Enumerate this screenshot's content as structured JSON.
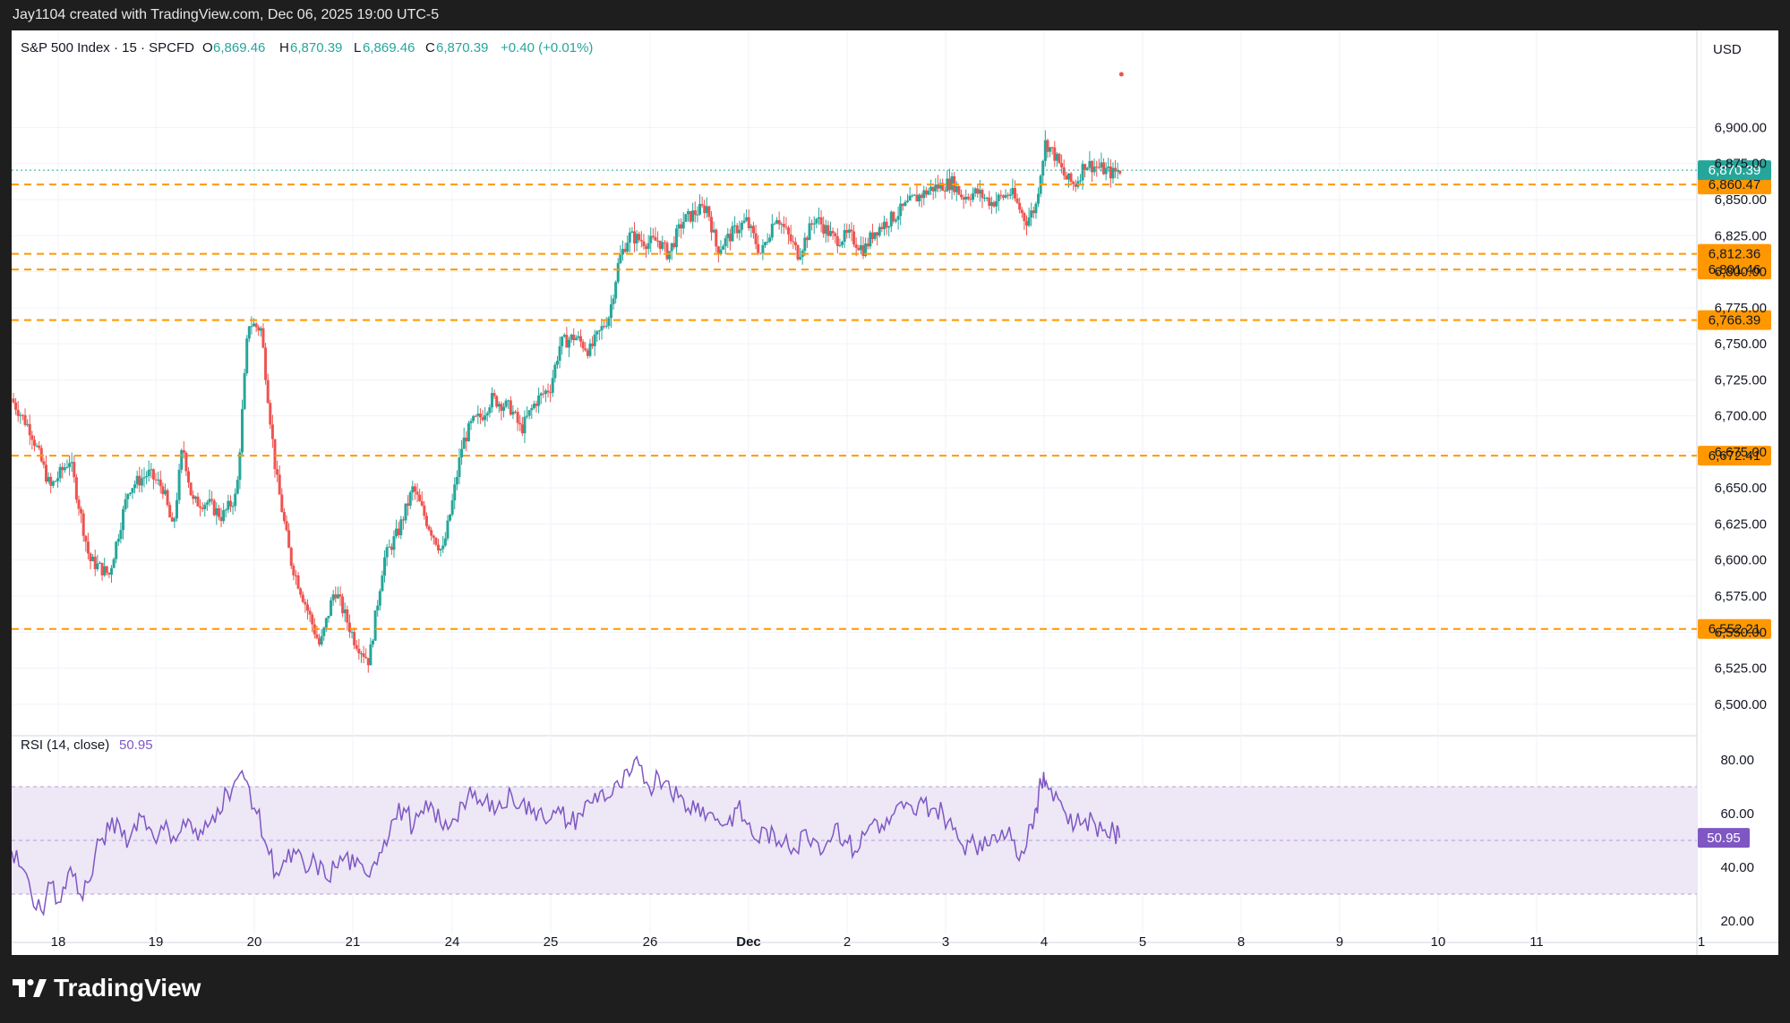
{
  "topbar": {
    "text": "Jay1104 created with TradingView.com, Dec 06, 2025 19:00 UTC-5"
  },
  "branding": {
    "logo_text": "TradingView",
    "icon": "tradingview-logo-icon"
  },
  "header": {
    "symbol": "S&P 500 Index · 15 · SPCFD",
    "o_label": "O",
    "o": "6,869.46",
    "h_label": "H",
    "h": "6,870.39",
    "l_label": "L",
    "l": "6,869.46",
    "c_label": "C",
    "c": "6,870.39",
    "change": "+0.40 (+0.01%)",
    "currency": "USD"
  },
  "colors": {
    "up": "#26a69a",
    "down": "#ef5350",
    "level": "#ff9800",
    "rsi": "#7e57c2",
    "rsi_band": "#ede7f6",
    "grid": "#f0f3fa",
    "axis_text": "#131722"
  },
  "chart_data": {
    "type": "candlestick",
    "title": "S&P 500 Index · 15 · SPCFD",
    "y_axis": {
      "min": 6485,
      "max": 6940,
      "ticks": [
        "6,900.00",
        "6,875.00",
        "6,850.00",
        "6,825.00",
        "6,800.00",
        "6,775.00",
        "6,750.00",
        "6,725.00",
        "6,700.00",
        "6,675.00",
        "6,650.00",
        "6,625.00",
        "6,600.00",
        "6,575.00",
        "6,550.00",
        "6,525.00",
        "6,500.00"
      ]
    },
    "x_axis": {
      "labels": [
        "18",
        "19",
        "20",
        "21",
        "24",
        "25",
        "26",
        "Dec",
        "2",
        "3",
        "4",
        "5",
        "8",
        "9",
        "10",
        "11",
        "1"
      ]
    },
    "last_price": {
      "value": 6870.39,
      "label": "6,870.39"
    },
    "levels": [
      {
        "value": 6860.47,
        "label": "6,860.47"
      },
      {
        "value": 6812.36,
        "label": "6,812.36"
      },
      {
        "value": 6801.46,
        "label": "6,801.46"
      },
      {
        "value": 6766.39,
        "label": "6,766.39"
      },
      {
        "value": 6672.41,
        "label": "6,672.41"
      },
      {
        "value": 6552.21,
        "label": "6,552.21"
      }
    ],
    "price_path": [
      [
        0,
        6712
      ],
      [
        2,
        6690
      ],
      [
        4,
        6650
      ],
      [
        6,
        6670
      ],
      [
        8,
        6600
      ],
      [
        10,
        6590
      ],
      [
        12,
        6650
      ],
      [
        14,
        6660
      ],
      [
        15.5,
        6650
      ],
      [
        16.5,
        6620
      ],
      [
        17.5,
        6680
      ],
      [
        18.5,
        6640
      ],
      [
        20,
        6640
      ],
      [
        21.5,
        6630
      ],
      [
        23,
        6645
      ],
      [
        24.2,
        6765
      ],
      [
        25.5,
        6760
      ],
      [
        27,
        6660
      ],
      [
        28.5,
        6600
      ],
      [
        30,
        6570
      ],
      [
        31.5,
        6540
      ],
      [
        33,
        6580
      ],
      [
        35,
        6545
      ],
      [
        36.5,
        6530
      ],
      [
        38,
        6600
      ],
      [
        39.5,
        6620
      ],
      [
        41,
        6650
      ],
      [
        42.5,
        6625
      ],
      [
        44,
        6605
      ],
      [
        45,
        6640
      ],
      [
        46,
        6680
      ],
      [
        47,
        6695
      ],
      [
        48,
        6700
      ],
      [
        49,
        6712
      ],
      [
        51,
        6705
      ],
      [
        52,
        6690
      ],
      [
        53.5,
        6710
      ],
      [
        55,
        6720
      ],
      [
        56,
        6750
      ],
      [
        57.5,
        6755
      ],
      [
        59,
        6745
      ],
      [
        61,
        6770
      ],
      [
        62,
        6808
      ],
      [
        63,
        6825
      ],
      [
        65,
        6820
      ],
      [
        66,
        6822
      ],
      [
        67,
        6812
      ],
      [
        68.5,
        6835
      ],
      [
        70,
        6842
      ],
      [
        71,
        6845
      ],
      [
        72,
        6815
      ],
      [
        74,
        6830
      ],
      [
        75,
        6835
      ],
      [
        76.5,
        6812
      ],
      [
        78,
        6840
      ],
      [
        80.3,
        6812
      ],
      [
        82,
        6838
      ],
      [
        84,
        6822
      ],
      [
        85.5,
        6825
      ],
      [
        87,
        6815
      ],
      [
        88,
        6828
      ],
      [
        90,
        6838
      ],
      [
        92,
        6850
      ],
      [
        94,
        6858
      ],
      [
        96,
        6862
      ],
      [
        97,
        6852
      ],
      [
        98.5,
        6855
      ],
      [
        100,
        6848
      ],
      [
        102,
        6855
      ],
      [
        103.5,
        6835
      ],
      [
        104.5,
        6845
      ],
      [
        105,
        6870
      ],
      [
        105.5,
        6890
      ],
      [
        106.5,
        6880
      ],
      [
        107.5,
        6865
      ],
      [
        108.5,
        6860
      ],
      [
        109.5,
        6875
      ],
      [
        111,
        6872
      ],
      [
        112.3,
        6868
      ],
      [
        113,
        6870.39
      ]
    ],
    "rsi": {
      "label": "RSI (14, close)",
      "value": 50.95,
      "value_label": "50.95",
      "min": 15,
      "max": 85,
      "upper": 70,
      "middle": 50,
      "lower": 30,
      "ticks": [
        "80.00",
        "60.00",
        "40.00",
        "20.00"
      ],
      "path": [
        [
          0,
          46
        ],
        [
          1,
          40
        ],
        [
          2,
          30
        ],
        [
          3,
          24
        ],
        [
          4,
          34
        ],
        [
          5,
          27
        ],
        [
          6,
          40
        ],
        [
          7,
          30
        ],
        [
          8,
          35
        ],
        [
          9,
          50
        ],
        [
          10,
          54
        ],
        [
          11,
          56
        ],
        [
          12,
          50
        ],
        [
          13,
          60
        ],
        [
          14,
          55
        ],
        [
          15,
          52
        ],
        [
          16,
          54
        ],
        [
          17,
          52
        ],
        [
          18,
          58
        ],
        [
          19,
          50
        ],
        [
          20,
          55
        ],
        [
          21,
          62
        ],
        [
          22,
          68
        ],
        [
          23,
          73
        ],
        [
          24,
          72
        ],
        [
          25,
          60
        ],
        [
          26,
          48
        ],
        [
          27,
          38
        ],
        [
          28,
          42
        ],
        [
          29,
          45
        ],
        [
          30,
          38
        ],
        [
          31,
          42
        ],
        [
          32,
          36
        ],
        [
          33,
          40
        ],
        [
          34,
          44
        ],
        [
          35,
          40
        ],
        [
          36,
          38
        ],
        [
          37,
          42
        ],
        [
          38,
          50
        ],
        [
          39,
          58
        ],
        [
          40,
          62
        ],
        [
          41,
          55
        ],
        [
          42,
          60
        ],
        [
          43,
          62
        ],
        [
          44,
          54
        ],
        [
          45,
          58
        ],
        [
          46,
          64
        ],
        [
          47,
          66
        ],
        [
          48,
          63
        ],
        [
          49,
          65
        ],
        [
          50,
          62
        ],
        [
          51,
          67
        ],
        [
          52,
          64
        ],
        [
          53,
          60
        ],
        [
          54,
          62
        ],
        [
          55,
          58
        ],
        [
          56,
          60
        ],
        [
          57,
          56
        ],
        [
          58,
          60
        ],
        [
          59,
          64
        ],
        [
          60,
          68
        ],
        [
          61,
          66
        ],
        [
          62,
          70
        ],
        [
          63,
          74
        ],
        [
          64,
          78
        ],
        [
          65,
          70
        ],
        [
          66,
          74
        ],
        [
          67,
          72
        ],
        [
          68,
          66
        ],
        [
          69,
          62
        ],
        [
          70,
          64
        ],
        [
          71,
          60
        ],
        [
          72,
          58
        ],
        [
          73,
          56
        ],
        [
          74,
          62
        ],
        [
          75,
          56
        ],
        [
          76,
          50
        ],
        [
          77,
          54
        ],
        [
          78,
          48
        ],
        [
          79,
          52
        ],
        [
          80,
          46
        ],
        [
          81,
          54
        ],
        [
          82,
          50
        ],
        [
          83,
          48
        ],
        [
          84,
          56
        ],
        [
          85,
          50
        ],
        [
          86,
          46
        ],
        [
          87,
          52
        ],
        [
          88,
          58
        ],
        [
          89,
          54
        ],
        [
          90,
          60
        ],
        [
          91,
          62
        ],
        [
          92,
          60
        ],
        [
          93,
          64
        ],
        [
          94,
          62
        ],
        [
          95,
          60
        ],
        [
          96,
          54
        ],
        [
          97,
          48
        ],
        [
          98,
          52
        ],
        [
          99,
          46
        ],
        [
          100,
          52
        ],
        [
          101,
          54
        ],
        [
          102,
          50
        ],
        [
          103,
          46
        ],
        [
          104,
          56
        ],
        [
          104.5,
          62
        ],
        [
          105,
          71
        ],
        [
          105.5,
          72
        ],
        [
          106.5,
          68
        ],
        [
          107.5,
          60
        ],
        [
          108.5,
          56
        ],
        [
          109.5,
          58
        ],
        [
          110.5,
          56
        ],
        [
          111.5,
          54
        ],
        [
          112.5,
          52
        ],
        [
          113,
          50.95
        ]
      ]
    }
  }
}
